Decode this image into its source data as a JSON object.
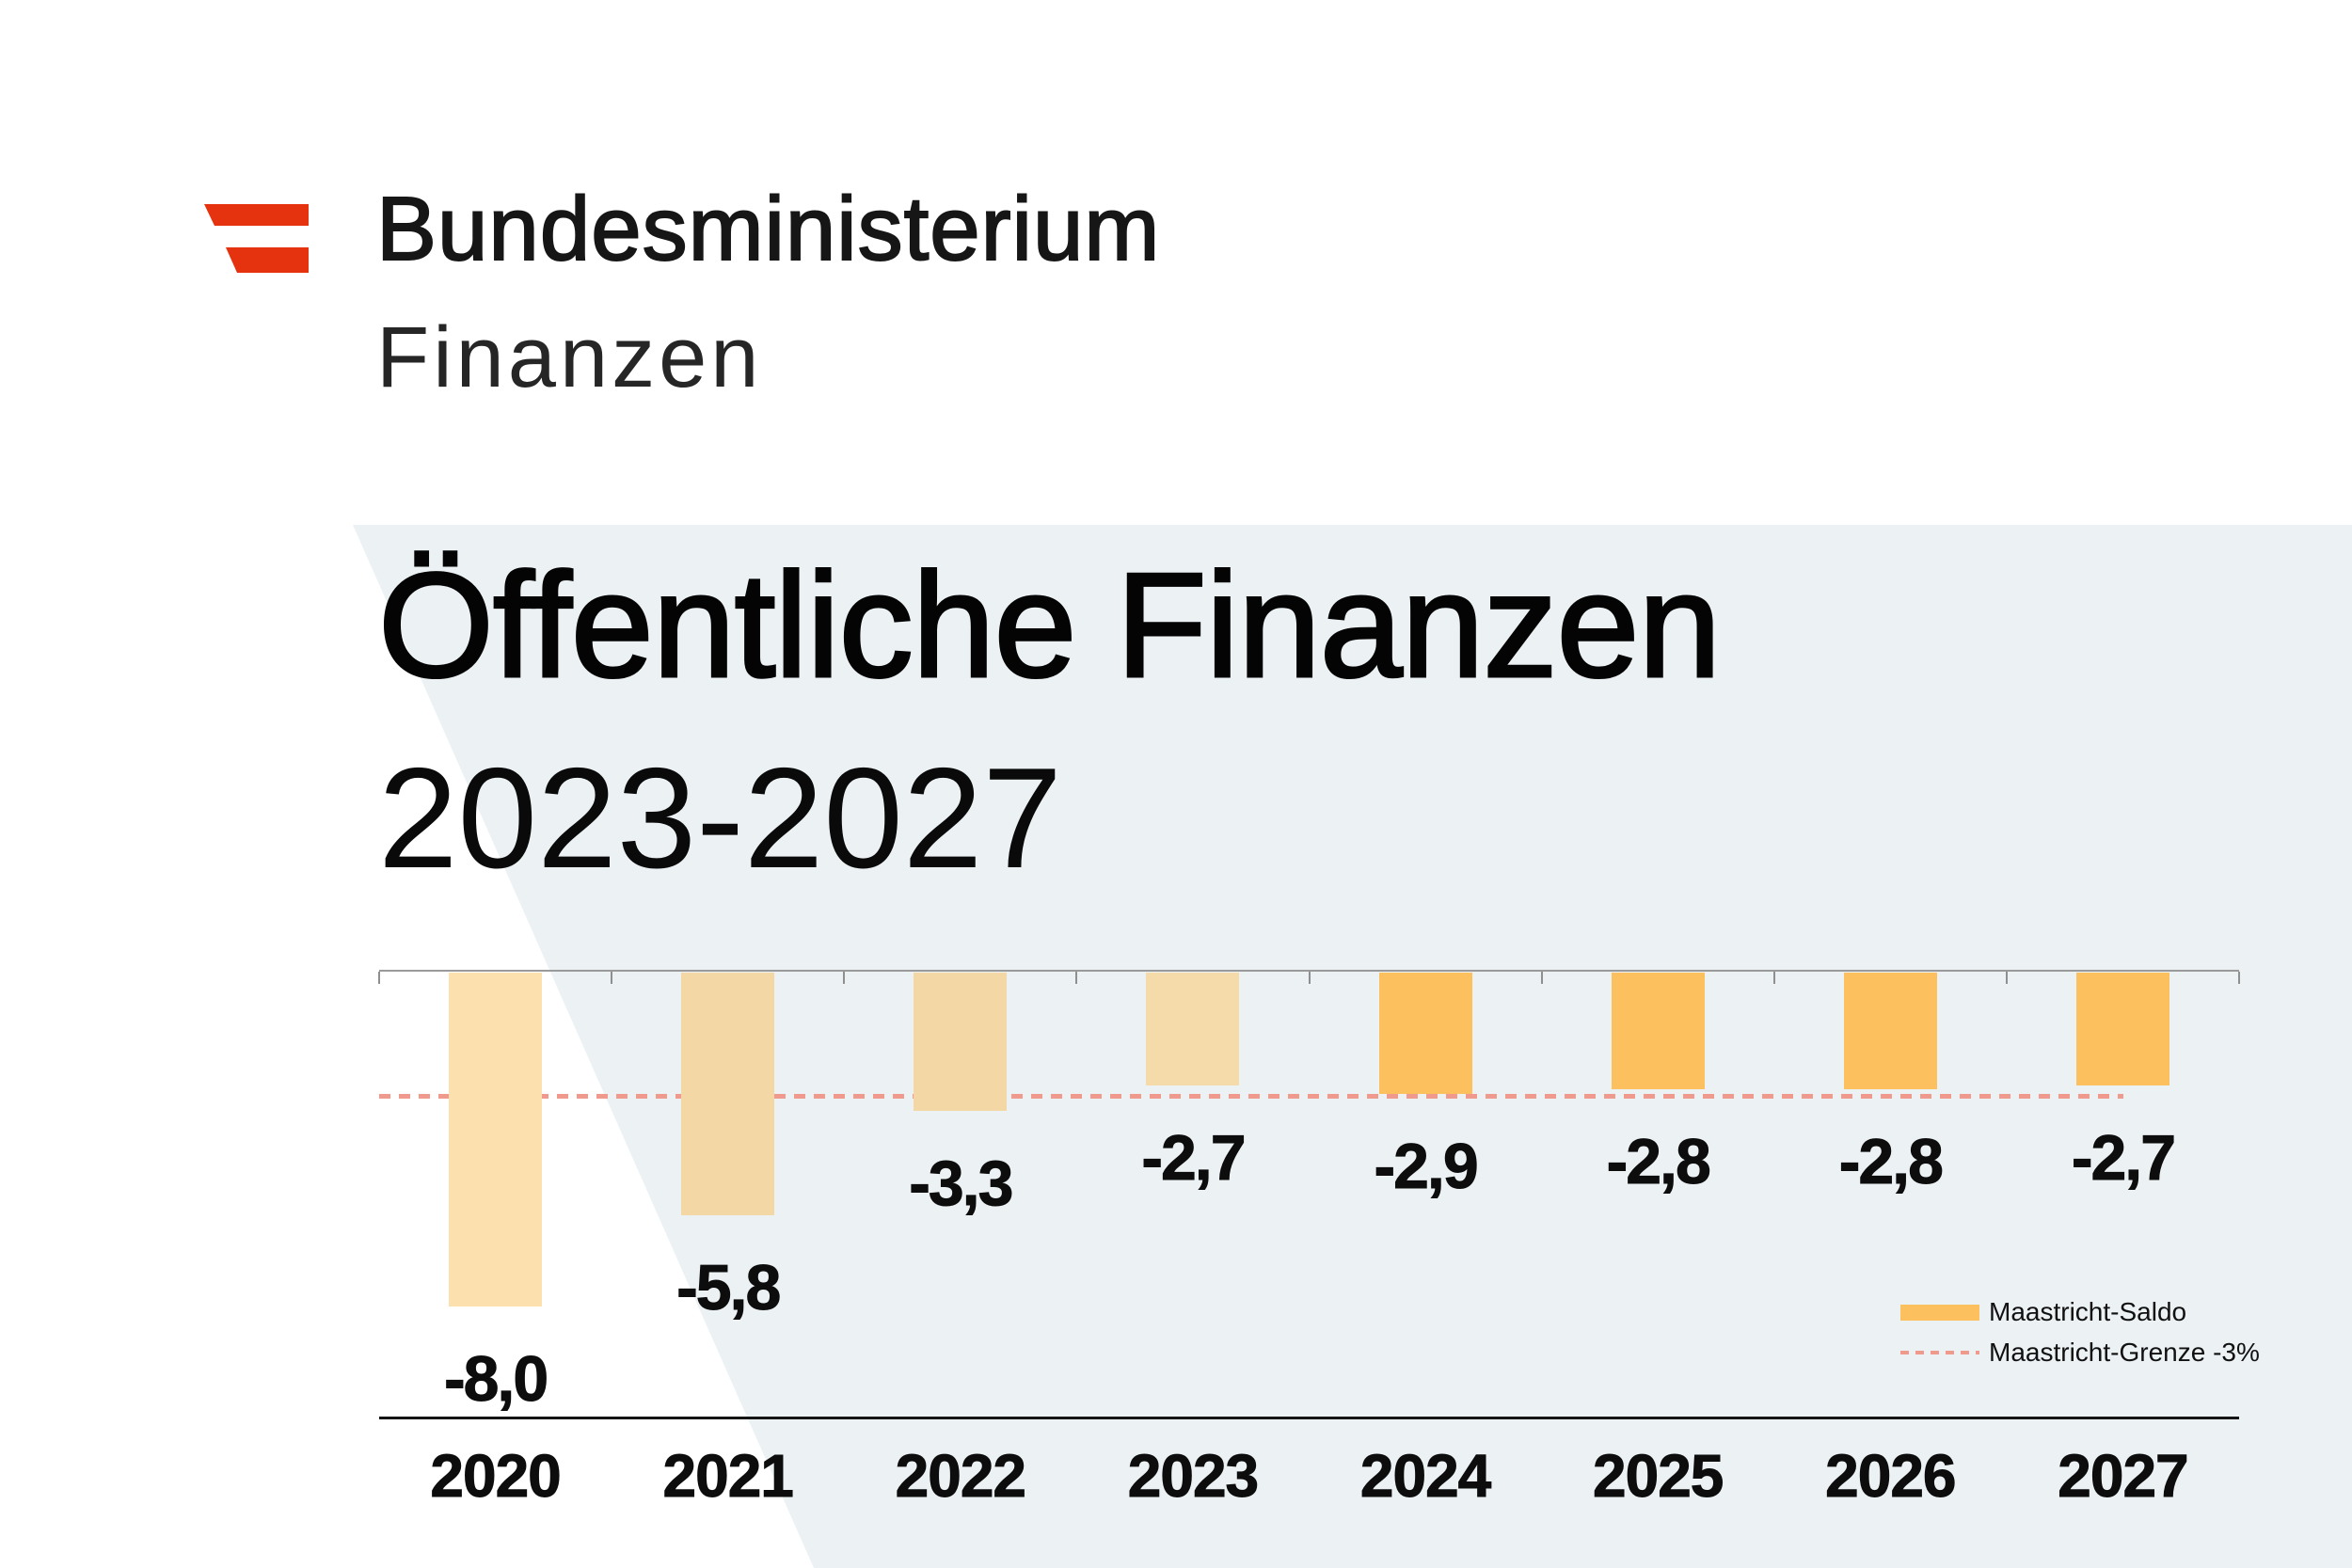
{
  "brand": {
    "line1": "Bundesministerium",
    "line2": "Finanzen"
  },
  "title": {
    "line1": "Öffentliche Finanzen",
    "line2": "2023-2027"
  },
  "chart_data": {
    "type": "bar",
    "title": "Öffentliche Finanzen 2023-2027",
    "categories": [
      "2020",
      "2021",
      "2022",
      "2023",
      "2024",
      "2025",
      "2026",
      "2027"
    ],
    "series": [
      {
        "name": "Maastricht-Saldo",
        "values": [
          -8.0,
          -5.8,
          -3.3,
          -2.7,
          -2.9,
          -2.8,
          -2.8,
          -2.7
        ],
        "value_labels": [
          "-8,0",
          "-5,8",
          "-3,3",
          "-2,7",
          "-2,9",
          "-2,8",
          "-2,8",
          "-2,7"
        ],
        "bar_colors": [
          "#fce0ae",
          "#f3d8a5",
          "#f3d8a5",
          "#f5dbaa",
          "#fcc05e",
          "#fcc05e",
          "#fcc05e",
          "#fcc05e"
        ]
      }
    ],
    "reference_line": {
      "name": "Maastricht-Grenze -3%",
      "value": -3,
      "color": "#ef9a8d",
      "style": "dashed"
    },
    "legend": {
      "position": "bottom-right",
      "entries": [
        "Maastricht-Saldo",
        "Maastricht-Grenze -3%"
      ]
    },
    "xlabel": "",
    "ylabel": "",
    "ylim": [
      -9,
      0
    ],
    "grid": false
  },
  "colors": {
    "background": "#ffffff",
    "panel": "#ecf1f4",
    "logo_red": "#e5330f",
    "bar_past": "#f3d8a5",
    "bar_forecast": "#fcc05e",
    "reference": "#ef9a8d",
    "axis_top": "#9a9a9a",
    "axis_bottom": "#141414"
  }
}
